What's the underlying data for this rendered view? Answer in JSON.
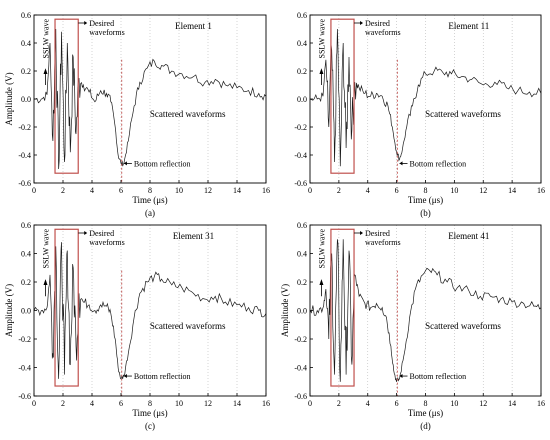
{
  "chart_data": [
    {
      "type": "line",
      "panel_label": "(a)",
      "element_label": "Element 1",
      "xlabel": "Time (μs)",
      "ylabel": "Amplitude (V)",
      "xlim": [
        0,
        16
      ],
      "ylim": [
        -0.6,
        0.6
      ],
      "x_ticks": [
        0,
        2,
        4,
        6,
        8,
        10,
        12,
        14,
        16
      ],
      "y_ticks": [
        -0.6,
        -0.4,
        -0.2,
        0.0,
        0.2,
        0.4,
        0.6
      ],
      "series": [
        {
          "x": [
            0,
            0.5,
            0.9,
            1.1,
            1.3,
            1.5,
            1.7,
            1.9,
            2.1,
            2.3,
            2.5,
            2.7,
            2.9,
            3.1,
            3.4,
            3.8,
            4.2,
            4.6,
            5.0,
            5.3,
            5.6,
            5.8,
            6.0,
            6.2,
            6.5,
            6.9,
            7.3,
            7.8,
            8.3,
            8.8,
            9.5,
            10.2,
            11.0,
            11.8,
            12.5,
            13.2,
            14.0,
            14.8,
            15.5,
            16.0
          ],
          "y": [
            0.0,
            0.0,
            0.03,
            0.4,
            -0.3,
            0.5,
            -0.5,
            0.48,
            -0.45,
            0.4,
            -0.38,
            0.3,
            -0.25,
            0.15,
            0.1,
            0.05,
            -0.02,
            0.06,
            0.04,
            -0.02,
            -0.2,
            -0.4,
            -0.46,
            -0.46,
            -0.3,
            -0.05,
            0.12,
            0.22,
            0.27,
            0.24,
            0.2,
            0.18,
            0.16,
            0.12,
            0.14,
            0.1,
            0.08,
            0.06,
            0.04,
            0.02
          ]
        }
      ],
      "annotations": {
        "sslw": "SSLW wave",
        "desired": "Desired waveforms",
        "scattered": "Scattered waveforms",
        "bottom": "Bottom reflection"
      }
    },
    {
      "type": "line",
      "panel_label": "(b)",
      "element_label": "Element 11",
      "xlabel": "Time (μs)",
      "ylabel": "",
      "xlim": [
        0,
        16
      ],
      "ylim": [
        -0.6,
        0.6
      ],
      "x_ticks": [
        0,
        2,
        4,
        6,
        8,
        10,
        12,
        14,
        16
      ],
      "y_ticks": [
        -0.6,
        -0.4,
        -0.2,
        0.0,
        0.2,
        0.4,
        0.6
      ],
      "series": [
        {
          "x": [
            0,
            0.5,
            0.9,
            1.1,
            1.3,
            1.5,
            1.7,
            1.9,
            2.1,
            2.3,
            2.5,
            2.7,
            2.9,
            3.1,
            3.4,
            3.8,
            4.2,
            4.6,
            5.0,
            5.4,
            5.7,
            6.0,
            6.2,
            6.4,
            6.7,
            7.1,
            7.5,
            8.0,
            8.6,
            9.2,
            9.8,
            10.5,
            11.2,
            12.0,
            12.8,
            13.6,
            14.4,
            15.2,
            16.0
          ],
          "y": [
            0.0,
            0.0,
            0.02,
            0.28,
            -0.2,
            0.35,
            -0.45,
            0.5,
            -0.48,
            0.4,
            -0.35,
            0.3,
            -0.22,
            0.12,
            0.08,
            0.04,
            0.02,
            0.04,
            0.02,
            -0.05,
            -0.2,
            -0.38,
            -0.43,
            -0.36,
            -0.2,
            -0.05,
            0.1,
            0.18,
            0.2,
            0.19,
            0.18,
            0.16,
            0.14,
            0.1,
            0.12,
            0.08,
            0.06,
            0.05,
            0.04
          ]
        }
      ],
      "annotations": {
        "sslw": "SSLW wave",
        "desired": "Desired waveforms",
        "scattered": "Scattered waveforms",
        "bottom": "Bottom reflection"
      }
    },
    {
      "type": "line",
      "panel_label": "(c)",
      "element_label": "Element 31",
      "xlabel": "Time (μs)",
      "ylabel": "Amplitude (V)",
      "xlim": [
        0,
        16
      ],
      "ylim": [
        -0.6,
        0.6
      ],
      "x_ticks": [
        0,
        2,
        4,
        6,
        8,
        10,
        12,
        14,
        16
      ],
      "y_ticks": [
        -0.6,
        -0.4,
        -0.2,
        0.0,
        0.2,
        0.4,
        0.6
      ],
      "series": [
        {
          "x": [
            0,
            0.5,
            0.9,
            1.1,
            1.3,
            1.5,
            1.7,
            1.9,
            2.1,
            2.3,
            2.5,
            2.7,
            2.9,
            3.1,
            3.4,
            3.8,
            4.2,
            4.6,
            5.0,
            5.3,
            5.6,
            5.8,
            6.0,
            6.2,
            6.5,
            6.9,
            7.3,
            7.8,
            8.3,
            8.8,
            9.5,
            10.2,
            11.0,
            11.8,
            12.5,
            13.2,
            14.0,
            14.8,
            15.5,
            16.0
          ],
          "y": [
            0.0,
            0.0,
            0.02,
            0.25,
            -0.3,
            0.45,
            -0.48,
            0.48,
            -0.45,
            0.42,
            -0.38,
            0.3,
            -0.25,
            0.12,
            0.06,
            0.04,
            0.0,
            0.04,
            0.03,
            -0.02,
            -0.2,
            -0.4,
            -0.48,
            -0.46,
            -0.3,
            -0.05,
            0.12,
            0.2,
            0.24,
            0.22,
            0.18,
            0.16,
            0.12,
            0.08,
            0.1,
            0.06,
            0.04,
            0.02,
            0.0,
            -0.02
          ]
        }
      ],
      "annotations": {
        "sslw": "SSLW wave",
        "desired": "Desired waveforms",
        "scattered": "Scattered waveforms",
        "bottom": "Bottom reflection"
      }
    },
    {
      "type": "line",
      "panel_label": "(d)",
      "element_label": "Element 41",
      "xlabel": "Time (μs)",
      "ylabel": "Amplitude (V)",
      "xlim": [
        0,
        16
      ],
      "ylim": [
        -0.6,
        0.6
      ],
      "x_ticks": [
        0,
        2,
        4,
        6,
        8,
        10,
        12,
        14,
        16
      ],
      "y_ticks": [
        -0.6,
        -0.4,
        -0.2,
        0.0,
        0.2,
        0.4,
        0.6
      ],
      "series": [
        {
          "x": [
            0,
            0.5,
            0.9,
            1.1,
            1.3,
            1.5,
            1.7,
            1.9,
            2.1,
            2.3,
            2.5,
            2.7,
            2.9,
            3.1,
            3.4,
            3.8,
            4.2,
            4.6,
            5.0,
            5.3,
            5.6,
            5.8,
            6.0,
            6.2,
            6.5,
            6.9,
            7.3,
            7.8,
            8.3,
            8.8,
            9.5,
            10.2,
            11.0,
            11.8,
            12.5,
            13.2,
            14.0,
            14.8,
            15.5,
            16.0
          ],
          "y": [
            0.0,
            0.0,
            0.02,
            0.15,
            -0.2,
            0.4,
            -0.45,
            0.5,
            -0.5,
            0.5,
            -0.45,
            0.42,
            -0.38,
            0.25,
            0.1,
            0.05,
            0.02,
            0.05,
            0.02,
            -0.05,
            -0.25,
            -0.42,
            -0.5,
            -0.48,
            -0.32,
            -0.05,
            0.15,
            0.25,
            0.28,
            0.25,
            0.2,
            0.16,
            0.14,
            0.1,
            0.1,
            0.08,
            0.06,
            0.05,
            0.03,
            0.02
          ]
        }
      ],
      "annotations": {
        "sslw": "SSLW wave",
        "desired": "Desired waveforms",
        "scattered": "Scattered waveforms",
        "bottom": "Bottom reflection"
      }
    }
  ]
}
